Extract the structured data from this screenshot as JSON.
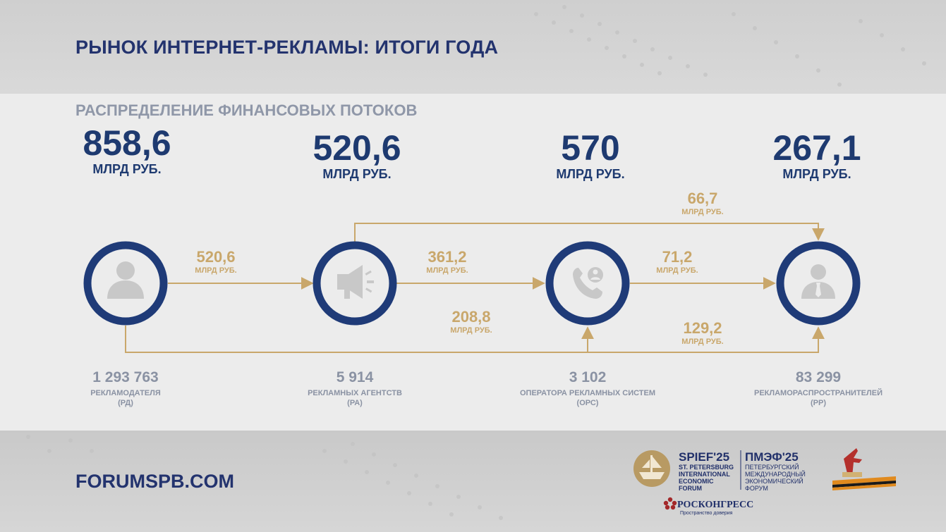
{
  "header": {
    "title": "РЫНОК ИНТЕРНЕТ-РЕКЛАМЫ: ИТОГИ ГОДА"
  },
  "section": {
    "subtitle": "РАСПРЕДЕЛЕНИЕ ФИНАНСОВЫХ ПОТОКОВ"
  },
  "totals": [
    {
      "value": "858,6",
      "unit": "МЛРД РУБ."
    },
    {
      "value": "520,6",
      "unit": "МЛРД РУБ."
    },
    {
      "value": "570",
      "unit": "МЛРД РУБ."
    },
    {
      "value": "267,1",
      "unit": "МЛРД РУБ."
    }
  ],
  "flows": [
    {
      "value": "520,6",
      "unit": "МЛРД РУБ."
    },
    {
      "value": "361,2",
      "unit": "МЛРД РУБ."
    },
    {
      "value": "71,2",
      "unit": "МЛРД РУБ."
    },
    {
      "value": "66,7",
      "unit": "МЛРД РУБ."
    },
    {
      "value": "208,8",
      "unit": "МЛРД РУБ."
    },
    {
      "value": "129,2",
      "unit": "МЛРД РУБ."
    }
  ],
  "nodes": [
    {
      "count": "1 293 763",
      "label": "РЕКЛАМОДАТЕЛЯ",
      "abbr": "(РД)",
      "icon": "person-icon"
    },
    {
      "count": "5 914",
      "label": "РЕКЛАМНЫХ АГЕНТСТВ",
      "abbr": "(РА)",
      "icon": "megaphone-icon"
    },
    {
      "count": "3 102",
      "label": "ОПЕРАТОРА РЕКЛАМНЫХ СИСТЕМ",
      "abbr": "(ОРС)",
      "icon": "phone-support-icon"
    },
    {
      "count": "83 299",
      "label": "РЕКЛАМОРАСПРОСТРАНИТЕЛЕЙ",
      "abbr": "(РР)",
      "icon": "businessman-icon"
    }
  ],
  "footer": {
    "url": "FORUMSPB.COM",
    "spief_title": "SPIEF'25",
    "spief_sub": [
      "ST. PETERSBURG",
      "INTERNATIONAL",
      "ECONOMIC",
      "FORUM"
    ],
    "pmef_title": "ПМЭФ'25",
    "pmef_sub": [
      "ПЕТЕРБУРГСКИЙ",
      "МЕЖДУНАРОДНЫЙ",
      "ЭКОНОМИЧЕСКИЙ",
      "ФОРУМ"
    ],
    "roscongress": "РОСКОНГРЕСС",
    "roscongress_tagline": "Пространство доверия"
  },
  "colors": {
    "navy": "#23336e",
    "ring": "#1f3b78",
    "gold": "#c9a76b",
    "grey_text": "#8a92a3",
    "icon_grey": "#c8c8c8"
  }
}
